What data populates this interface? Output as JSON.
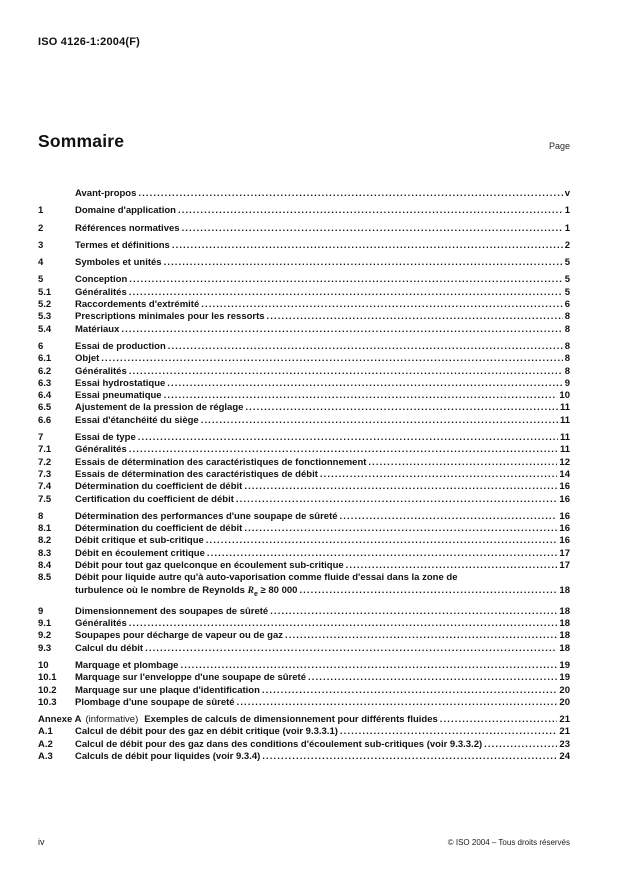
{
  "page": {
    "doc_ref": "ISO 4126-1:2004(F)",
    "footer": {
      "page_number": "iv",
      "copyright": "© ISO 2004 – Tous droits réservés"
    }
  },
  "toc": {
    "title": "Sommaire",
    "page_column_label": "Page",
    "groups": [
      {
        "entries": [
          {
            "num": "",
            "label": "Avant-propos",
            "page": "v"
          }
        ]
      },
      {
        "entries": [
          {
            "num": "1",
            "label": "Domaine d'application",
            "page": "1"
          }
        ]
      },
      {
        "entries": [
          {
            "num": "2",
            "label": "Références normatives",
            "page": "1"
          }
        ]
      },
      {
        "entries": [
          {
            "num": "3",
            "label": "Termes et définitions",
            "page": "2"
          }
        ]
      },
      {
        "entries": [
          {
            "num": "4",
            "label": "Symboles et unités",
            "page": "5"
          }
        ]
      },
      {
        "entries": [
          {
            "num": "5",
            "label": "Conception",
            "page": "5"
          },
          {
            "num": "5.1",
            "label": "Généralités",
            "page": "5"
          },
          {
            "num": "5.2",
            "label": "Raccordements d'extrémité",
            "page": "6"
          },
          {
            "num": "5.3",
            "label": "Prescriptions minimales pour les ressorts",
            "page": "8"
          },
          {
            "num": "5.4",
            "label": "Matériaux",
            "page": "8"
          }
        ]
      },
      {
        "entries": [
          {
            "num": "6",
            "label": "Essai de production",
            "page": "8"
          },
          {
            "num": "6.1",
            "label": "Objet",
            "page": "8"
          },
          {
            "num": "6.2",
            "label": "Généralités",
            "page": "8"
          },
          {
            "num": "6.3",
            "label": "Essai hydrostatique",
            "page": "9"
          },
          {
            "num": "6.4",
            "label": "Essai pneumatique",
            "page": "10"
          },
          {
            "num": "6.5",
            "label": "Ajustement de la pression de réglage",
            "page": "11"
          },
          {
            "num": "6.6",
            "label": "Essai d'étanchéité du siège",
            "page": "11"
          }
        ]
      },
      {
        "entries": [
          {
            "num": "7",
            "label": "Essai de type",
            "page": "11"
          },
          {
            "num": "7.1",
            "label": "Généralités",
            "page": "11"
          },
          {
            "num": "7.2",
            "label": "Essais de détermination des caractéristiques de fonctionnement",
            "page": "12"
          },
          {
            "num": "7.3",
            "label": "Essais de détermination des caractéristiques de débit",
            "page": "14"
          },
          {
            "num": "7.4",
            "label": "Détermination du coefficient de débit",
            "page": "16"
          },
          {
            "num": "7.5",
            "label": "Certification du coefficient de débit",
            "page": "16"
          }
        ]
      },
      {
        "entries": [
          {
            "num": "8",
            "label": "Détermination des performances d'une soupape de sûreté",
            "page": "16"
          },
          {
            "num": "8.1",
            "label": "Détermination du coefficient de débit",
            "page": "16"
          },
          {
            "num": "8.2",
            "label": "Débit critique et sub-critique",
            "page": "16"
          },
          {
            "num": "8.3",
            "label": "Débit en écoulement critique",
            "page": "17"
          },
          {
            "num": "8.4",
            "label": "Débit pour tout gaz quelconque en écoulement sub-critique",
            "page": "17"
          },
          {
            "num": "8.5",
            "label": "Débit pour liquide autre qu'à auto-vaporisation comme fluide d'essai dans la zone de",
            "line2": {
              "pre": "turbulence où le nombre de Reynolds ",
              "var": "R",
              "sub": "e",
              "post": " ≥ 80 000"
            },
            "page": "18"
          }
        ]
      },
      {
        "entries": [
          {
            "num": "9",
            "label": "Dimensionnement des soupapes de sûreté",
            "page": "18"
          },
          {
            "num": "9.1",
            "label": "Généralités",
            "page": "18"
          },
          {
            "num": "9.2",
            "label": "Soupapes pour décharge de vapeur ou de gaz",
            "page": "18"
          },
          {
            "num": "9.3",
            "label": "Calcul du débit",
            "page": "18"
          }
        ]
      },
      {
        "entries": [
          {
            "num": "10",
            "label": "Marquage et plombage",
            "page": "19"
          },
          {
            "num": "10.1",
            "label": "Marquage sur l'enveloppe d'une soupape de sûreté",
            "page": "19"
          },
          {
            "num": "10.2",
            "label": "Marquage sur une plaque d'identification",
            "page": "20"
          },
          {
            "num": "10.3",
            "label": "Plombage d'une soupape de sûreté",
            "page": "20"
          }
        ]
      },
      {
        "entries": [
          {
            "num": "Annexe A",
            "mid": "(informative)",
            "label": "Exemples de calculs de dimensionnement pour différents fluides",
            "page": "21"
          },
          {
            "num": "A.1",
            "label": "Calcul de débit pour des gaz en débit critique (voir 9.3.3.1)",
            "page": "21"
          },
          {
            "num": "A.2",
            "label": "Calcul de débit pour des gaz dans des conditions d'écoulement sub-critiques (voir 9.3.3.2)",
            "page": "23"
          },
          {
            "num": "A.3",
            "label": "Calculs de débit pour liquides (voir 9.3.4)",
            "page": "24"
          }
        ]
      }
    ]
  }
}
